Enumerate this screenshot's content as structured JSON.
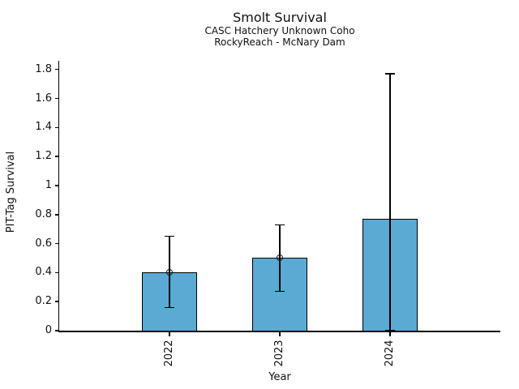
{
  "chart_data": {
    "type": "bar",
    "title": "Smolt Survival",
    "subtitle_line1": "CASC Hatchery Unknown Coho",
    "subtitle_line2": "RockyReach - McNary Dam",
    "xlabel": "Year",
    "ylabel": "PIT-Tag Survival",
    "categories": [
      "2022",
      "2023",
      "2024"
    ],
    "values": [
      0.4,
      0.5,
      0.77
    ],
    "error_low": [
      0.16,
      0.27,
      0.0
    ],
    "error_high": [
      0.65,
      0.73,
      1.77
    ],
    "point_estimates": [
      0.4,
      0.5,
      null
    ],
    "yticks": [
      0,
      0.2,
      0.4,
      0.6,
      0.8,
      1,
      1.2,
      1.4,
      1.6,
      1.8
    ],
    "ytick_labels": [
      "0",
      "0.2",
      "0.4",
      "0.6",
      "0.8",
      "1",
      "1.2",
      "1.4",
      "1.6",
      "1.8"
    ],
    "ylim": [
      0,
      1.86
    ],
    "xtick_rotation_deg": 90,
    "grid": false,
    "legend": "none",
    "bar_color": "#5AAAD4",
    "bar_edge_color": "#000000",
    "errorbar_color": "#000000",
    "background_color": "#FFFFFF"
  }
}
